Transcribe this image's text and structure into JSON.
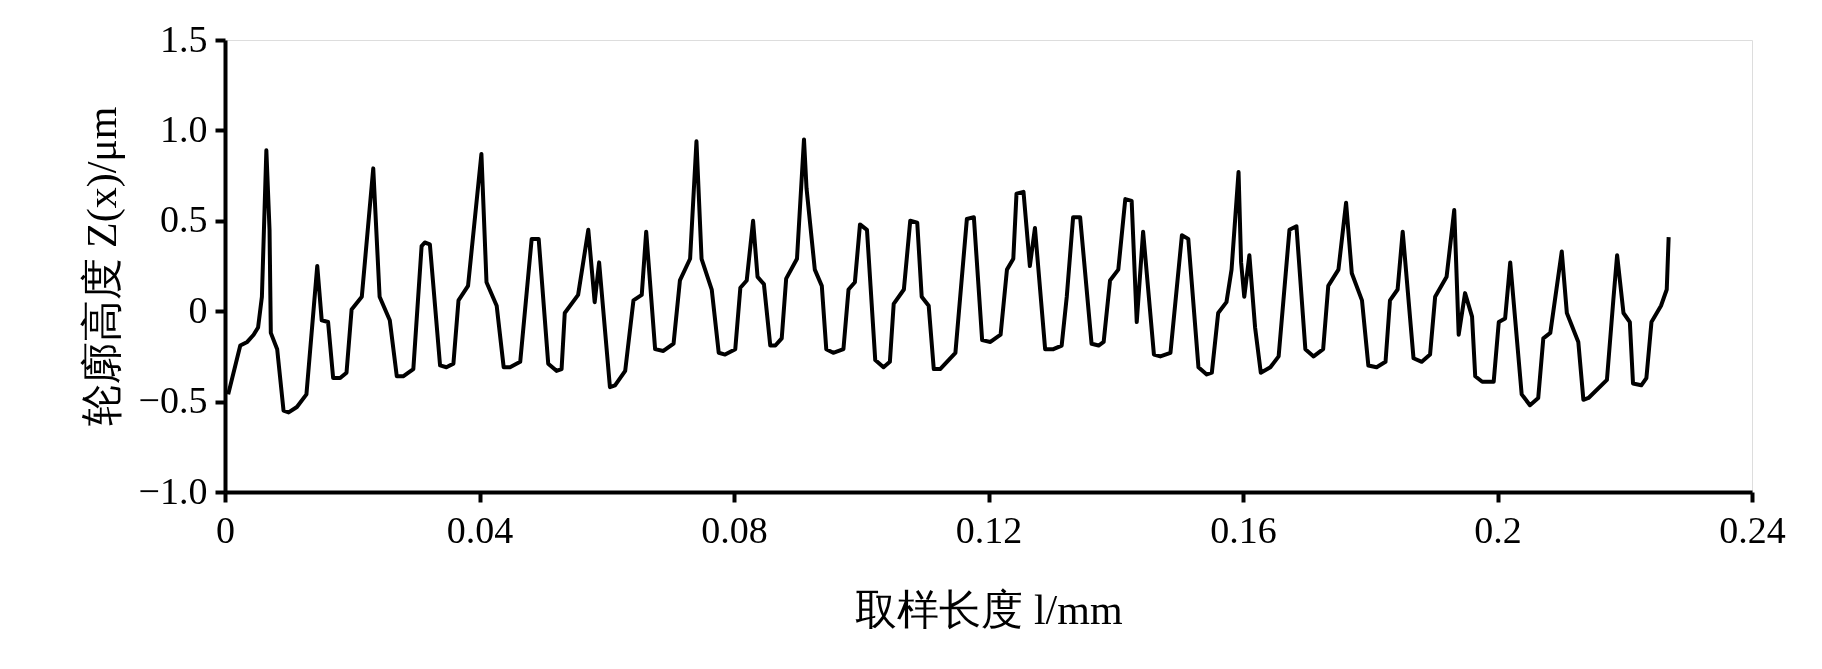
{
  "chart_data": {
    "type": "line",
    "xlabel": "取样长度 l/mm",
    "ylabel": "轮廓高度 Z(x)/μm",
    "x": [
      0.0005,
      0.0024,
      0.0035,
      0.0045,
      0.0052,
      0.0058,
      0.0065,
      0.007,
      0.0072,
      0.0082,
      0.0092,
      0.01,
      0.0113,
      0.0128,
      0.0145,
      0.0152,
      0.0162,
      0.017,
      0.0181,
      0.0191,
      0.0199,
      0.0215,
      0.0233,
      0.0243,
      0.0259,
      0.027,
      0.028,
      0.0296,
      0.0309,
      0.0314,
      0.0322,
      0.0338,
      0.0348,
      0.0359,
      0.0367,
      0.0382,
      0.0403,
      0.0411,
      0.0427,
      0.0438,
      0.0448,
      0.0464,
      0.0482,
      0.0493,
      0.0508,
      0.0521,
      0.0529,
      0.0534,
      0.0555,
      0.0571,
      0.0581,
      0.0588,
      0.0605,
      0.0613,
      0.0629,
      0.0642,
      0.0655,
      0.0662,
      0.0676,
      0.0689,
      0.0705,
      0.0715,
      0.0731,
      0.0741,
      0.0749,
      0.0765,
      0.0776,
      0.0786,
      0.0802,
      0.081,
      0.082,
      0.083,
      0.0837,
      0.0847,
      0.0857,
      0.0865,
      0.0875,
      0.0882,
      0.0899,
      0.091,
      0.0914,
      0.0927,
      0.0938,
      0.0945,
      0.0956,
      0.0972,
      0.098,
      0.099,
      0.0998,
      0.1009,
      0.1022,
      0.1035,
      0.1045,
      0.1051,
      0.1067,
      0.1077,
      0.1088,
      0.1095,
      0.1106,
      0.1114,
      0.1124,
      0.1148,
      0.1166,
      0.1177,
      0.119,
      0.1203,
      0.1219,
      0.1229,
      0.1239,
      0.1244,
      0.1255,
      0.1265,
      0.1273,
      0.1289,
      0.1302,
      0.1315,
      0.1323,
      0.1333,
      0.1344,
      0.1362,
      0.1373,
      0.1381,
      0.1391,
      0.1404,
      0.1415,
      0.1425,
      0.1433,
      0.1443,
      0.146,
      0.147,
      0.1486,
      0.1504,
      0.1514,
      0.153,
      0.1543,
      0.1551,
      0.1561,
      0.1574,
      0.1582,
      0.1593,
      0.1597,
      0.1602,
      0.161,
      0.1619,
      0.1628,
      0.1643,
      0.1656,
      0.1673,
      0.1684,
      0.1698,
      0.1711,
      0.1726,
      0.1734,
      0.175,
      0.1762,
      0.1771,
      0.1787,
      0.1797,
      0.181,
      0.1824,
      0.1831,
      0.1843,
      0.1851,
      0.1868,
      0.1881,
      0.1894,
      0.1902,
      0.192,
      0.1932,
      0.1935,
      0.1939,
      0.1949,
      0.196,
      0.1965,
      0.1976,
      0.1994,
      0.2002,
      0.2012,
      0.202,
      0.2038,
      0.2051,
      0.2064,
      0.2072,
      0.2083,
      0.2101,
      0.2109,
      0.2127,
      0.2135,
      0.2143,
      0.2172,
      0.2182,
      0.2188,
      0.2198,
      0.2208,
      0.2213,
      0.2226,
      0.2234,
      0.2242,
      0.2257,
      0.2266,
      0.2269
    ],
    "series": [
      {
        "color": "#000000",
        "values": [
          -0.46,
          -0.19,
          -0.17,
          -0.13,
          -0.09,
          0.08,
          0.89,
          0.45,
          -0.12,
          -0.21,
          -0.55,
          -0.56,
          -0.53,
          -0.46,
          0.25,
          -0.05,
          -0.06,
          -0.37,
          -0.37,
          -0.34,
          0.01,
          0.08,
          0.79,
          0.08,
          -0.05,
          -0.36,
          -0.36,
          -0.32,
          0.36,
          0.38,
          0.37,
          -0.3,
          -0.31,
          -0.29,
          0.06,
          0.14,
          0.87,
          0.16,
          0.03,
          -0.31,
          -0.31,
          -0.28,
          0.4,
          0.4,
          -0.29,
          -0.33,
          -0.32,
          -0.01,
          0.09,
          0.45,
          0.05,
          0.27,
          -0.42,
          -0.41,
          -0.33,
          0.06,
          0.09,
          0.44,
          -0.21,
          -0.22,
          -0.18,
          0.17,
          0.29,
          0.94,
          0.29,
          0.12,
          -0.23,
          -0.24,
          -0.21,
          0.13,
          0.17,
          0.5,
          0.19,
          0.15,
          -0.19,
          -0.19,
          -0.15,
          0.18,
          0.29,
          0.95,
          0.68,
          0.23,
          0.14,
          -0.21,
          -0.23,
          -0.21,
          0.12,
          0.16,
          0.48,
          0.45,
          -0.27,
          -0.31,
          -0.28,
          0.04,
          0.12,
          0.5,
          0.49,
          0.08,
          0.03,
          -0.32,
          -0.32,
          -0.23,
          0.51,
          0.52,
          -0.16,
          -0.17,
          -0.13,
          0.23,
          0.29,
          0.65,
          0.66,
          0.25,
          0.46,
          -0.21,
          -0.21,
          -0.19,
          0.08,
          0.52,
          0.52,
          -0.18,
          -0.19,
          -0.17,
          0.17,
          0.23,
          0.62,
          0.61,
          -0.06,
          0.44,
          -0.24,
          -0.25,
          -0.23,
          0.42,
          0.4,
          -0.31,
          -0.35,
          -0.34,
          -0.01,
          0.05,
          0.23,
          0.77,
          0.27,
          0.08,
          0.31,
          -0.09,
          -0.34,
          -0.31,
          -0.25,
          0.45,
          0.47,
          -0.21,
          -0.25,
          -0.21,
          0.14,
          0.23,
          0.6,
          0.21,
          0.06,
          -0.3,
          -0.31,
          -0.28,
          0.06,
          0.12,
          0.44,
          -0.26,
          -0.28,
          -0.24,
          0.08,
          0.19,
          0.56,
          0.27,
          -0.13,
          0.1,
          -0.03,
          -0.36,
          -0.39,
          -0.39,
          -0.06,
          -0.04,
          0.27,
          -0.46,
          -0.52,
          -0.48,
          -0.15,
          -0.12,
          0.33,
          -0.01,
          -0.17,
          -0.49,
          -0.48,
          -0.38,
          0.06,
          0.31,
          -0.01,
          -0.06,
          -0.4,
          -0.41,
          -0.37,
          -0.06,
          0.03,
          0.12,
          0.41
        ]
      }
    ],
    "xlim": [
      0,
      0.24
    ],
    "xticks": [
      0,
      0.04,
      0.08,
      0.12,
      0.16,
      0.2,
      0.24
    ],
    "ylim": [
      -1.0,
      1.5
    ],
    "yticks": [
      {
        "value": -1.0,
        "label": "−1.0"
      },
      {
        "value": -0.5,
        "label": "−0.5"
      },
      0,
      {
        "value": 0.5,
        "label": "0.5"
      },
      {
        "value": 1.0,
        "label": "1.0"
      },
      {
        "value": 1.5,
        "label": "1.5"
      }
    ],
    "grid": false,
    "marker": "none",
    "line_style": "solid"
  }
}
